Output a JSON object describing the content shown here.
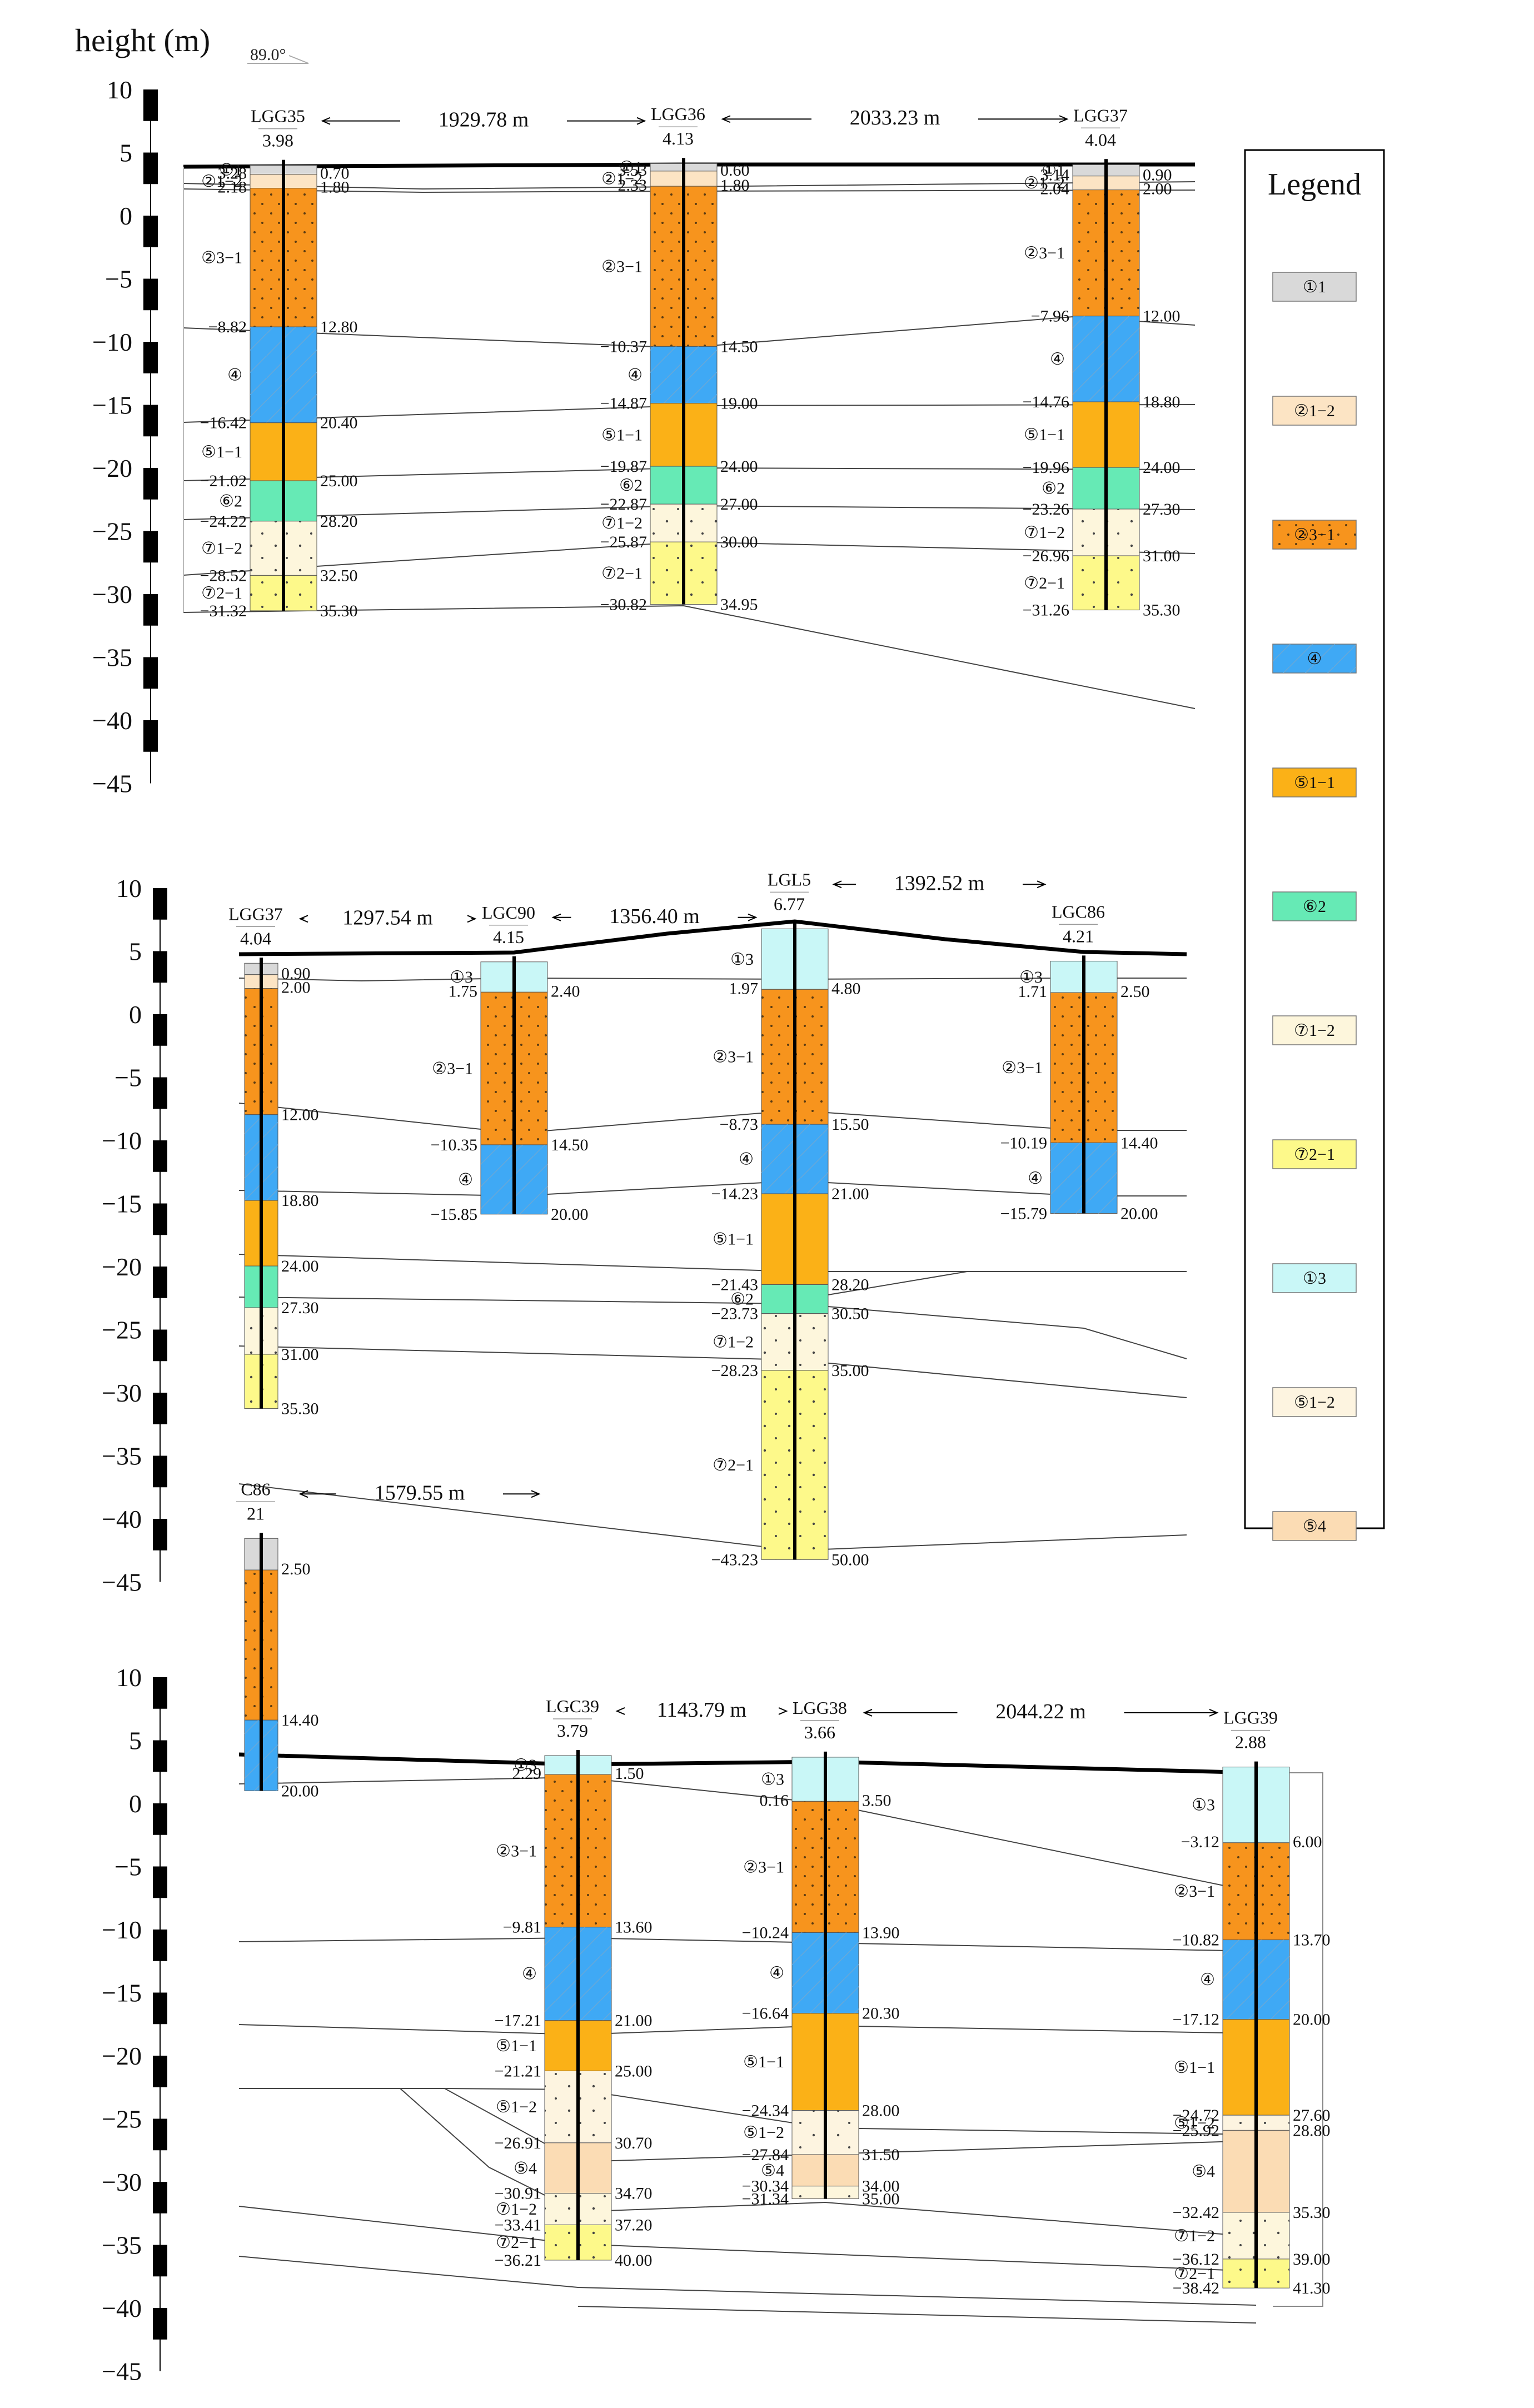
{
  "header": {
    "height_label": "height (m)",
    "angle_label": "89.0°"
  },
  "axis": {
    "ticks": [
      "10",
      "5",
      "0",
      "−5",
      "−10",
      "−15",
      "−20",
      "−25",
      "−30",
      "−35",
      "−40",
      "−45"
    ]
  },
  "legend": {
    "title": "Legend",
    "items": [
      {
        "label": "①1",
        "color": "#d9d9d9"
      },
      {
        "label": "②1−2",
        "color": "#fce4c4"
      },
      {
        "label": "②3−1",
        "color": "#f7941d"
      },
      {
        "label": "④",
        "color": "#3fa9f5"
      },
      {
        "label": "⑤1−1",
        "color": "#fbb117"
      },
      {
        "label": "⑥2",
        "color": "#66eab5"
      },
      {
        "label": "⑦1−2",
        "color": "#fdf6dc"
      },
      {
        "label": "⑦2−1",
        "color": "#fdf98a"
      },
      {
        "label": "①3",
        "color": "#c9f7f7"
      },
      {
        "label": "⑤1−2",
        "color": "#fdf4e0"
      },
      {
        "label": "⑤4",
        "color": "#fbdcb4"
      }
    ]
  },
  "sections": [
    {
      "boreholes": [
        {
          "id": "LGG35",
          "elev": "3.98",
          "top_layers": [
            {
              "elev": "3.28",
              "label": "①1",
              "depth": "0.70"
            },
            {
              "elev": "2.18",
              "label": "②1−2",
              "depth": "1.80"
            }
          ],
          "layers": [
            {
              "code": "②3−1",
              "elev": "−8.82",
              "depth": "12.80",
              "color": "#f7941d"
            },
            {
              "code": "④",
              "elev": "−16.42",
              "depth": "20.40",
              "color": "#3fa9f5"
            },
            {
              "code": "⑤1−1",
              "elev": "−21.02",
              "depth": "25.00",
              "color": "#fbb117"
            },
            {
              "code": "⑥2",
              "elev": "−24.22",
              "depth": "28.20",
              "color": "#66eab5"
            },
            {
              "code": "⑦1−2",
              "elev": "−28.52",
              "depth": "32.50",
              "color": "#fdf6dc"
            },
            {
              "code": "⑦2−1",
              "elev": "−31.32",
              "depth": "35.30",
              "color": "#fdf98a"
            }
          ]
        },
        {
          "id": "LGG36",
          "elev": "4.13",
          "top_layers": [
            {
              "elev": "3.53",
              "label": "①1",
              "depth": "0.60"
            },
            {
              "elev": "2.33",
              "label": "②1−2",
              "depth": "1.80"
            }
          ],
          "layers": [
            {
              "code": "②3−1",
              "elev": "−10.37",
              "depth": "14.50",
              "color": "#f7941d"
            },
            {
              "code": "④",
              "elev": "−14.87",
              "depth": "19.00",
              "color": "#3fa9f5"
            },
            {
              "code": "⑤1−1",
              "elev": "−19.87",
              "depth": "24.00",
              "color": "#fbb117"
            },
            {
              "code": "⑥2",
              "elev": "−22.87",
              "depth": "27.00",
              "color": "#66eab5"
            },
            {
              "code": "⑦1−2",
              "elev": "−25.87",
              "depth": "30.00",
              "color": "#fdf6dc"
            },
            {
              "code": "⑦2−1",
              "elev": "−30.82",
              "depth": "34.95",
              "color": "#fdf98a"
            }
          ]
        },
        {
          "id": "LGG37",
          "elev": "4.04",
          "top_layers": [
            {
              "elev": "3.14",
              "label": "①1",
              "depth": "0.90"
            },
            {
              "elev": "2.04",
              "label": "②1−2",
              "depth": "2.00"
            }
          ],
          "layers": [
            {
              "code": "②3−1",
              "elev": "−7.96",
              "depth": "12.00",
              "color": "#f7941d"
            },
            {
              "code": "④",
              "elev": "−14.76",
              "depth": "18.80",
              "color": "#3fa9f5"
            },
            {
              "code": "⑤1−1",
              "elev": "−19.96",
              "depth": "24.00",
              "color": "#fbb117"
            },
            {
              "code": "⑥2",
              "elev": "−23.26",
              "depth": "27.30",
              "color": "#66eab5"
            },
            {
              "code": "⑦1−2",
              "elev": "−26.96",
              "depth": "31.00",
              "color": "#fdf6dc"
            },
            {
              "code": "⑦2−1",
              "elev": "−31.26",
              "depth": "35.30",
              "color": "#fdf98a"
            }
          ]
        }
      ],
      "distances": [
        "1929.78 m",
        "2033.23 m"
      ]
    },
    {
      "boreholes": [
        {
          "id": "LGG37",
          "elev": "4.04",
          "top_layers": [
            {
              "elev": "",
              "label": "",
              "depth": "0.90"
            },
            {
              "elev": "",
              "label": "",
              "depth": "2.00"
            }
          ],
          "layers": [
            {
              "code": "",
              "elev": "",
              "depth": "12.00",
              "color": "#f7941d"
            },
            {
              "code": "",
              "elev": "",
              "depth": "18.80",
              "color": "#3fa9f5"
            },
            {
              "code": "",
              "elev": "",
              "depth": "24.00",
              "color": "#fbb117"
            },
            {
              "code": "",
              "elev": "",
              "depth": "27.30",
              "color": "#66eab5"
            },
            {
              "code": "",
              "elev": "",
              "depth": "31.00",
              "color": "#fdf6dc"
            },
            {
              "code": "",
              "elev": "",
              "depth": "35.30",
              "color": "#fdf98a"
            }
          ]
        },
        {
          "id": "LGC90",
          "elev": "4.15",
          "top_layers": [
            {
              "elev": "1.75",
              "label": "①3",
              "depth": "2.40"
            }
          ],
          "layers": [
            {
              "code": "②3−1",
              "elev": "−10.35",
              "depth": "14.50",
              "color": "#f7941d"
            },
            {
              "code": "④",
              "elev": "−15.85",
              "depth": "20.00",
              "color": "#3fa9f5"
            }
          ]
        },
        {
          "id": "LGL5",
          "elev": "6.77",
          "top_layers": [
            {
              "elev": "1.97",
              "label": "①3",
              "depth": "4.80"
            }
          ],
          "layers": [
            {
              "code": "②3−1",
              "elev": "−8.73",
              "depth": "15.50",
              "color": "#f7941d"
            },
            {
              "code": "④",
              "elev": "−14.23",
              "depth": "21.00",
              "color": "#3fa9f5"
            },
            {
              "code": "⑤1−1",
              "elev": "−21.43",
              "depth": "28.20",
              "color": "#fbb117"
            },
            {
              "code": "⑥2",
              "elev": "−23.73",
              "depth": "30.50",
              "color": "#66eab5"
            },
            {
              "code": "⑦1−2",
              "elev": "−28.23",
              "depth": "35.00",
              "color": "#fdf6dc"
            },
            {
              "code": "⑦2−1",
              "elev": "−43.23",
              "depth": "50.00",
              "color": "#fdf98a"
            }
          ]
        },
        {
          "id": "LGC86",
          "elev": "4.21",
          "top_layers": [
            {
              "elev": "1.71",
              "label": "①3",
              "depth": "2.50"
            }
          ],
          "layers": [
            {
              "code": "②3−1",
              "elev": "−10.19",
              "depth": "14.40",
              "color": "#f7941d"
            },
            {
              "code": "④",
              "elev": "−15.79",
              "depth": "20.00",
              "color": "#3fa9f5"
            }
          ]
        }
      ],
      "distances": [
        "1297.54 m",
        "1356.40 m",
        "1392.52 m"
      ]
    },
    {
      "boreholes": [
        {
          "id": "C86",
          "elev": "21",
          "top_layers": [
            {
              "elev": "",
              "label": "",
              "depth": "2.50"
            }
          ],
          "layers": [
            {
              "code": "",
              "elev": "",
              "depth": "14.40",
              "color": "#f7941d"
            },
            {
              "code": "",
              "elev": "",
              "depth": "20.00",
              "color": "#3fa9f5"
            }
          ]
        },
        {
          "id": "LGC39",
          "elev": "3.79",
          "top_layers": [
            {
              "elev": "2.29",
              "label": "①3",
              "depth": "1.50"
            }
          ],
          "layers": [
            {
              "code": "②3−1",
              "elev": "−9.81",
              "depth": "13.60",
              "color": "#f7941d"
            },
            {
              "code": "④",
              "elev": "−17.21",
              "depth": "21.00",
              "color": "#3fa9f5"
            },
            {
              "code": "⑤1−1",
              "elev": "−21.21",
              "depth": "25.00",
              "color": "#fbb117"
            },
            {
              "code": "⑤1−2",
              "elev": "−26.91",
              "depth": "30.70",
              "color": "#fdf4e0"
            },
            {
              "code": "⑤4",
              "elev": "−30.91",
              "depth": "34.70",
              "color": "#fbdcb4"
            },
            {
              "code": "⑦1−2",
              "elev": "−33.41",
              "depth": "37.20",
              "color": "#fdf6dc"
            },
            {
              "code": "⑦2−1",
              "elev": "−36.21",
              "depth": "40.00",
              "color": "#fdf98a"
            }
          ]
        },
        {
          "id": "LGG38",
          "elev": "3.66",
          "top_layers": [
            {
              "elev": "0.16",
              "label": "①3",
              "depth": "3.50"
            }
          ],
          "layers": [
            {
              "code": "②3−1",
              "elev": "−10.24",
              "depth": "13.90",
              "color": "#f7941d"
            },
            {
              "code": "④",
              "elev": "−16.64",
              "depth": "20.30",
              "color": "#3fa9f5"
            },
            {
              "code": "⑤1−1",
              "elev": "−24.34",
              "depth": "28.00",
              "color": "#fbb117"
            },
            {
              "code": "⑤1−2",
              "elev": "−27.84",
              "depth": "31.50",
              "color": "#fdf4e0"
            },
            {
              "code": "⑤4",
              "elev": "−30.34",
              "depth": "34.00",
              "color": "#fbdcb4"
            },
            {
              "code": "",
              "elev": "−31.34",
              "depth": "35.00",
              "color": "#fdf6dc"
            }
          ]
        },
        {
          "id": "LGG39",
          "elev": "2.88",
          "top_layers": [
            {
              "elev": "−3.12",
              "label": "①3",
              "depth": "6.00"
            }
          ],
          "layers": [
            {
              "code": "②3−1",
              "elev": "−10.82",
              "depth": "13.70",
              "color": "#f7941d"
            },
            {
              "code": "④",
              "elev": "−17.12",
              "depth": "20.00",
              "color": "#3fa9f5"
            },
            {
              "code": "⑤1−1",
              "elev": "−24.72",
              "depth": "27.60",
              "color": "#fbb117"
            },
            {
              "code": "⑤1−2",
              "elev": "−25.92",
              "depth": "28.80",
              "color": "#fdf4e0"
            },
            {
              "code": "⑤4",
              "elev": "−32.42",
              "depth": "35.30",
              "color": "#fbdcb4"
            },
            {
              "code": "⑦1−2",
              "elev": "−36.12",
              "depth": "39.00",
              "color": "#fdf6dc"
            },
            {
              "code": "⑦2−1",
              "elev": "−38.42",
              "depth": "41.30",
              "color": "#fdf98a"
            }
          ]
        }
      ],
      "distances": [
        "1579.55 m",
        "1143.79 m",
        "2044.22 m"
      ]
    }
  ]
}
